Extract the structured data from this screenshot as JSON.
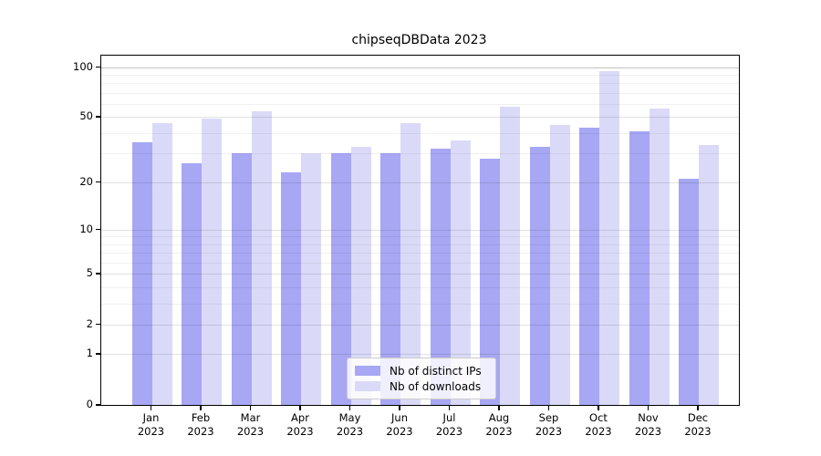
{
  "title": "chipseqDBData 2023",
  "legend": {
    "items": [
      {
        "label": "Nb of distinct IPs",
        "color": "#a7a7f4"
      },
      {
        "label": "Nb of downloads",
        "color": "#dadaf8"
      }
    ]
  },
  "y_axis": {
    "tick_labels": [
      "0",
      "1",
      "2",
      "5",
      "10",
      "20",
      "50",
      "100"
    ]
  },
  "x_axis": {
    "year_label": "2023"
  },
  "chart_data": {
    "type": "bar",
    "title": "chipseqDBData 2023",
    "categories": [
      "Jan",
      "Feb",
      "Mar",
      "Apr",
      "May",
      "Jun",
      "Jul",
      "Aug",
      "Sep",
      "Oct",
      "Nov",
      "Dec"
    ],
    "x_tick_second_line": "2023",
    "series": [
      {
        "name": "Nb of distinct IPs",
        "color": "#a7a7f4",
        "values": [
          35,
          26,
          30,
          23,
          30,
          30,
          32,
          28,
          33,
          43,
          41,
          21
        ]
      },
      {
        "name": "Nb of downloads",
        "color": "#dadaf8",
        "values": [
          46,
          49,
          54,
          30,
          33,
          46,
          36,
          58,
          45,
          94,
          56,
          34
        ]
      }
    ],
    "y_scale": "log10(value+1)",
    "y_major_ticks": [
      0,
      1,
      2,
      5,
      10,
      20,
      50,
      100
    ],
    "y_minor_gridlines": [
      3,
      4,
      6,
      7,
      8,
      9,
      30,
      40,
      60,
      70,
      80,
      90
    ],
    "ylim": [
      0,
      117
    ],
    "grid": true,
    "legend_position": "lower center"
  },
  "colors": {
    "bar_dark": "#a7a7f4",
    "bar_light": "#dadaf8",
    "background": "#ffffff",
    "spine": "#000000"
  }
}
